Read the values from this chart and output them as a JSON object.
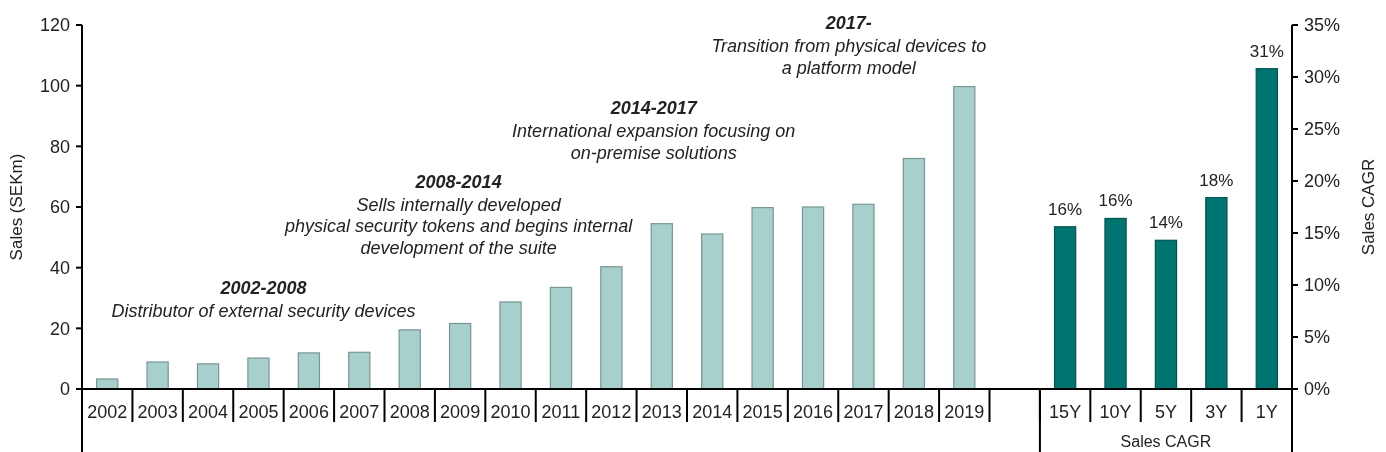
{
  "chart_data": {
    "type": "bar",
    "categories": [
      "2002",
      "2003",
      "2004",
      "2005",
      "2006",
      "2007",
      "2008",
      "2009",
      "2010",
      "2011",
      "2012",
      "2013",
      "2014",
      "2015",
      "2016",
      "2017",
      "2018",
      "2019",
      null,
      "15Y",
      "10Y",
      "5Y",
      "3Y",
      "1Y"
    ],
    "series": [
      {
        "color": "#a7cfcc",
        "values": [
          3.3,
          8.9,
          8.3,
          10.2,
          11.9,
          12.1,
          19.5,
          21.6,
          28.7,
          33.5,
          40.3,
          54.5,
          51.1,
          59.8,
          60.0,
          60.9,
          76.0,
          99.7,
          null,
          null,
          null,
          null,
          null,
          null
        ]
      },
      {
        "name": "Sales CAGR",
        "color": "#007470",
        "axis": "y2",
        "values": [
          null,
          null,
          null,
          null,
          null,
          null,
          null,
          null,
          null,
          null,
          null,
          null,
          null,
          null,
          null,
          null,
          null,
          null,
          null,
          15.6,
          16.4,
          14.3,
          18.4,
          30.8
        ],
        "value_labels": [
          null,
          null,
          null,
          null,
          null,
          null,
          null,
          null,
          null,
          null,
          null,
          null,
          null,
          null,
          null,
          null,
          null,
          null,
          null,
          "16%",
          "16%",
          "14%",
          "18%",
          "31%"
        ]
      }
    ],
    "ylabel": "Sales (SEKm)",
    "y2label": "Sales CAGR",
    "ylim": [
      0,
      120
    ],
    "yticks": [
      0,
      20,
      40,
      60,
      80,
      100,
      120
    ],
    "y2lim": [
      0,
      35
    ],
    "y2ticks": [
      {
        "value": 0,
        "label": "0%"
      },
      {
        "value": 5,
        "label": "5%"
      },
      {
        "value": 10,
        "label": "10%"
      },
      {
        "value": 15,
        "label": "15%"
      },
      {
        "value": 20,
        "label": "20%"
      },
      {
        "value": 25,
        "label": "25%"
      },
      {
        "value": 30,
        "label": "30%"
      },
      {
        "value": 35,
        "label": "35%"
      }
    ],
    "annotations": [
      "2002-2008\nDistributor of external security devices",
      "2008-2014\nSells internally developed\nphysical security tokens and begins internal\ndevelopment of the suite",
      "2014-2017\nInternational expansion focusing on\non-premise solutions",
      "2017-\nTransition from physical devices to\na platform model"
    ]
  }
}
